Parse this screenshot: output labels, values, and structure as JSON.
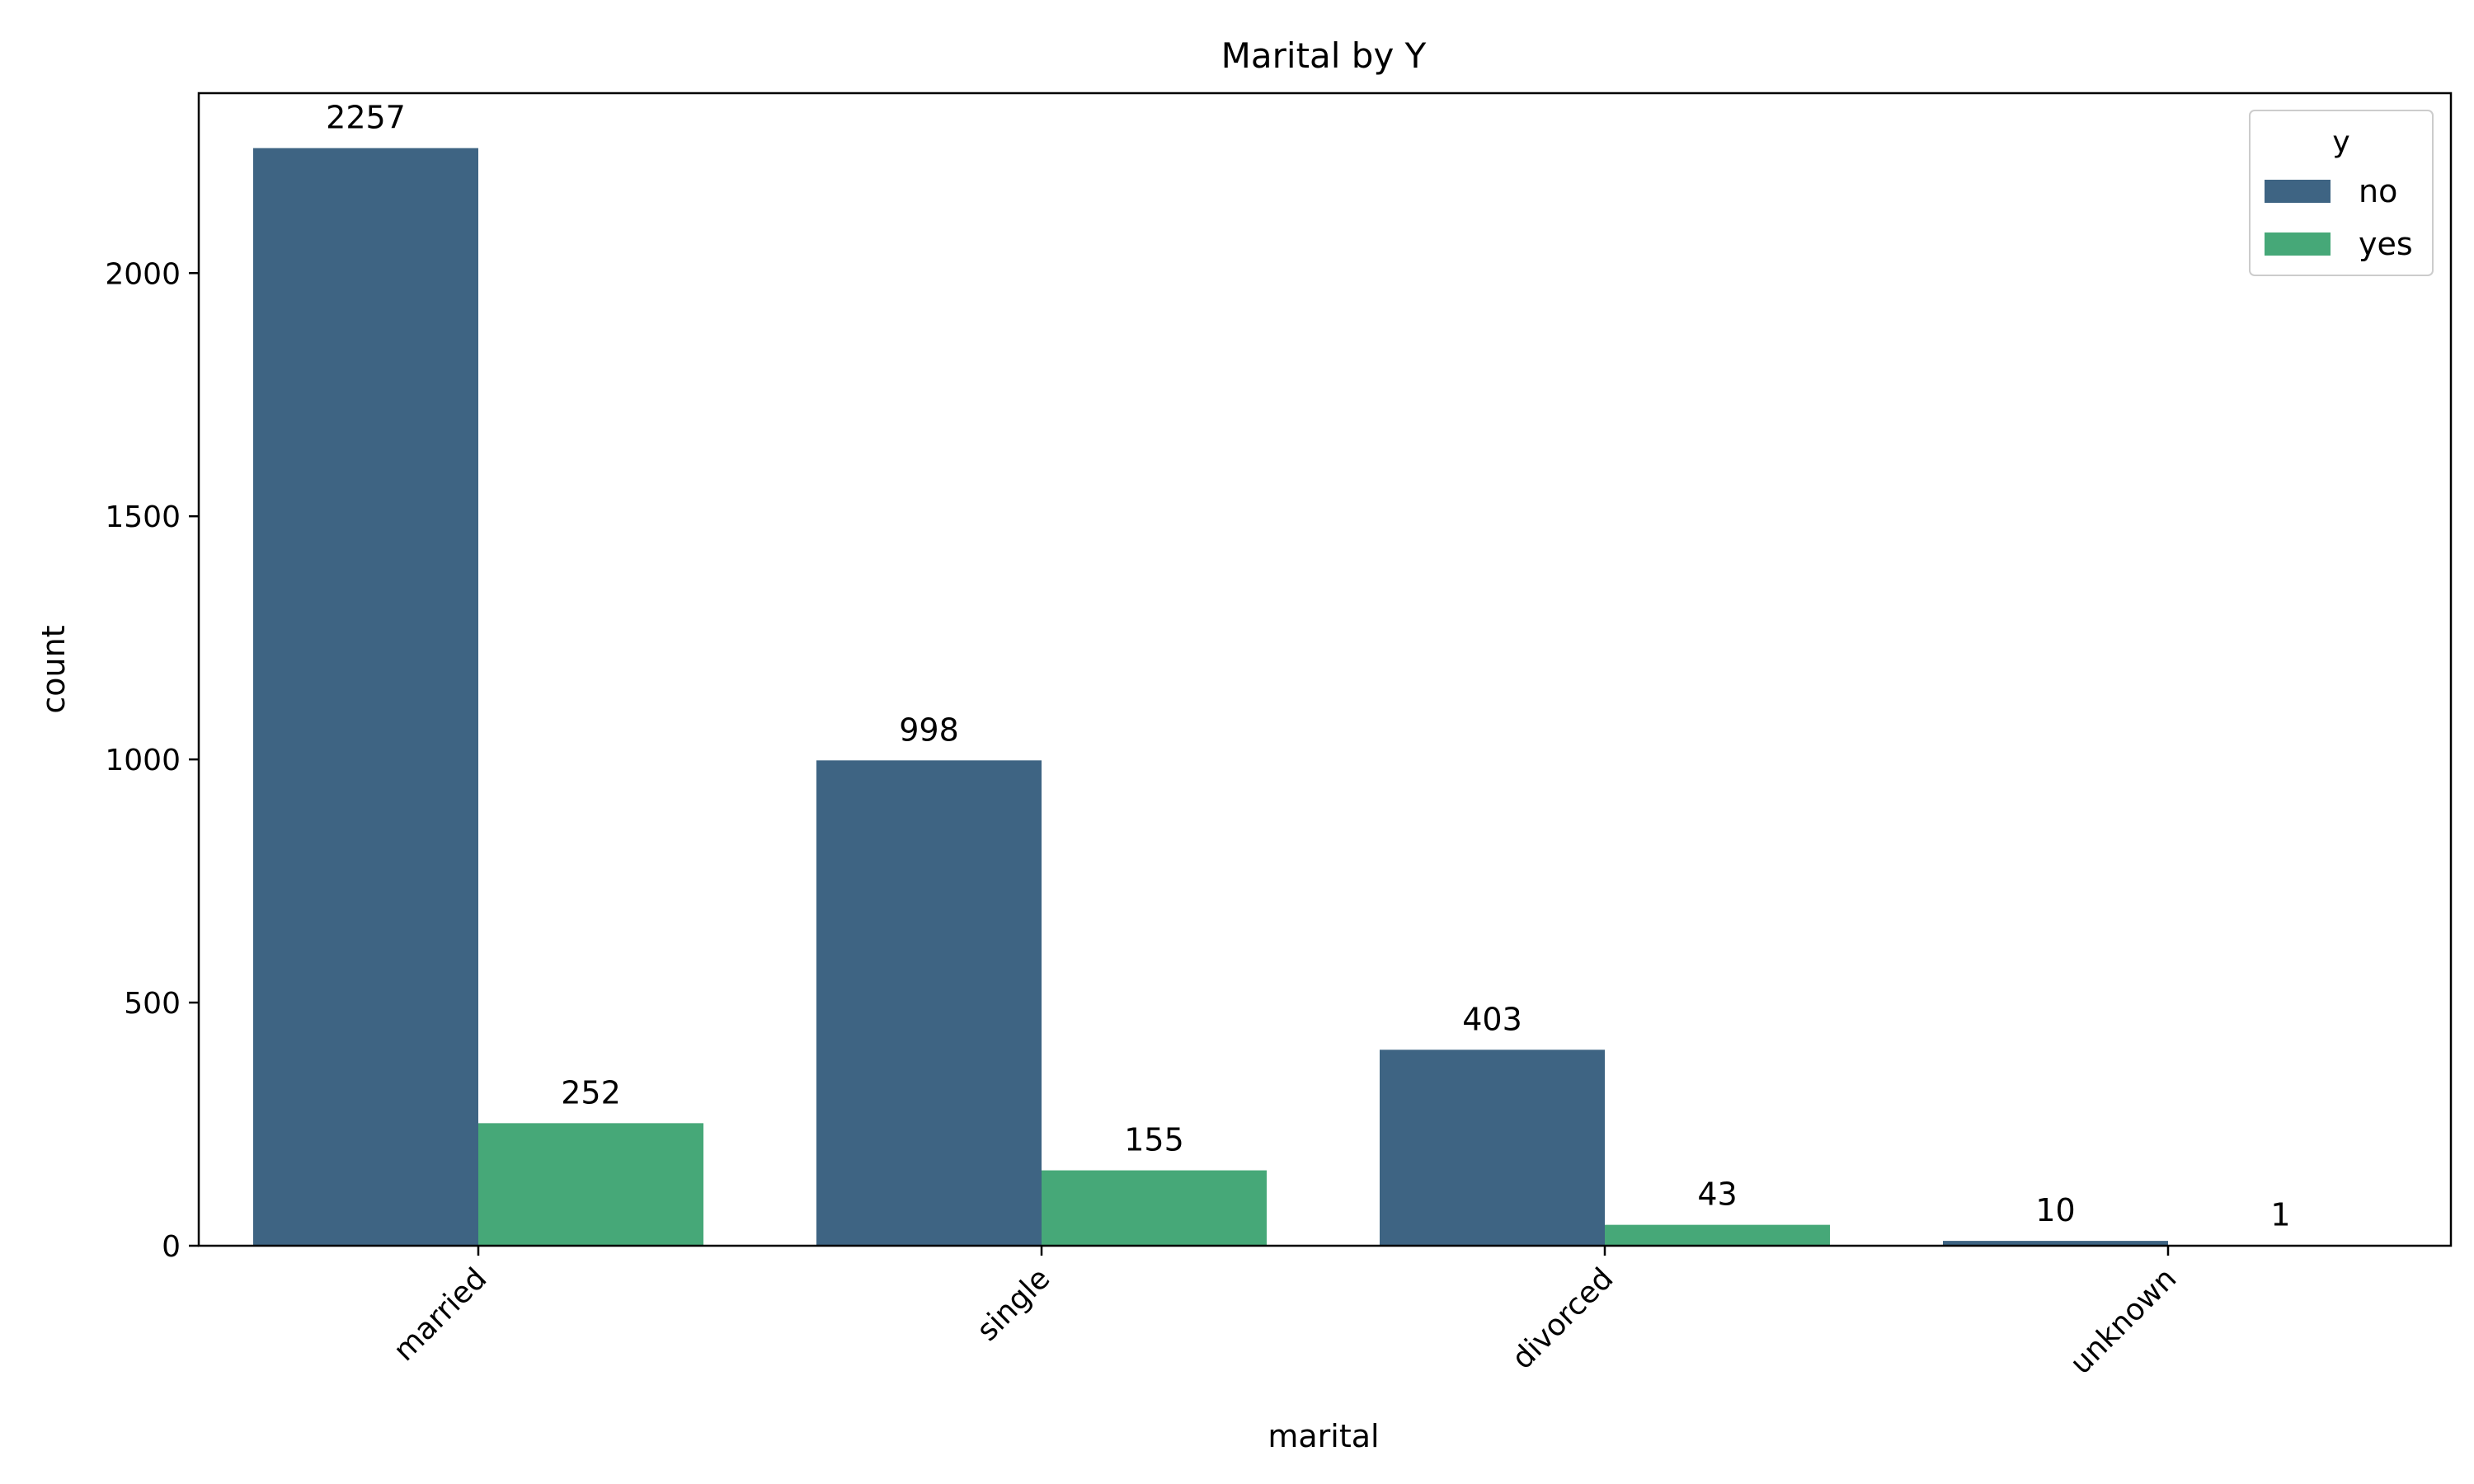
{
  "chart_data": {
    "type": "bar",
    "title": "Marital by Y",
    "xlabel": "marital",
    "ylabel": "count",
    "categories": [
      "married",
      "single",
      "divorced",
      "unknown"
    ],
    "series": [
      {
        "name": "no",
        "values": [
          2257,
          998,
          403,
          10
        ],
        "color": "#3e6483"
      },
      {
        "name": "yes",
        "values": [
          252,
          155,
          43,
          1
        ],
        "color": "#46a878"
      }
    ],
    "ylim": [
      0,
      2370
    ],
    "yticks": [
      0,
      500,
      1000,
      1500,
      2000
    ],
    "legend": {
      "title": "y",
      "position": "top-right"
    },
    "grid": false
  }
}
